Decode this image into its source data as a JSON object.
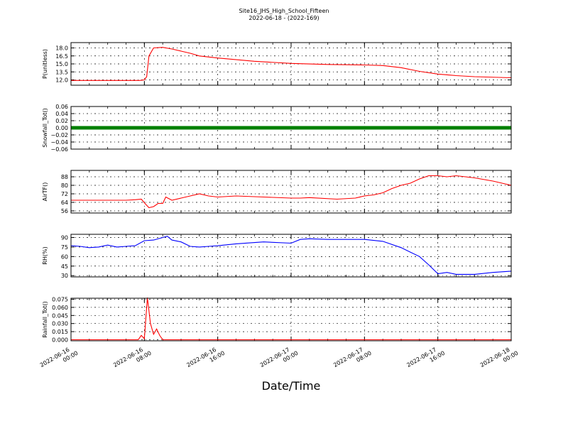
{
  "figure": {
    "title": "Site16_JHS_High_School_Fifteen",
    "subtitle": "2022-06-18 - (2022-169)",
    "xlabel": "Date/Time"
  },
  "chart_data": [
    {
      "type": "line",
      "ylabel": "P(unitless)",
      "ylim": [
        11.0,
        19.0
      ],
      "yticks": [
        12.0,
        13.5,
        15.0,
        16.5,
        18.0
      ],
      "ytick_labels": [
        "12.0",
        "13.5",
        "15.0",
        "16.5",
        "18.0"
      ],
      "color": "#ff0000",
      "x": [
        "2022-06-16 00:00",
        "2022-06-16 04:00",
        "2022-06-16 07:30",
        "2022-06-16 08:00",
        "2022-06-16 08:15",
        "2022-06-16 08:30",
        "2022-06-16 09:00",
        "2022-06-16 10:00",
        "2022-06-16 11:00",
        "2022-06-16 12:00",
        "2022-06-16 13:00",
        "2022-06-16 14:00",
        "2022-06-16 16:00",
        "2022-06-16 20:00",
        "2022-06-17 00:00",
        "2022-06-17 04:00",
        "2022-06-17 08:00",
        "2022-06-17 10:00",
        "2022-06-17 12:00",
        "2022-06-17 14:00",
        "2022-06-17 16:00",
        "2022-06-17 18:00",
        "2022-06-17 20:00",
        "2022-06-18 00:00"
      ],
      "y": [
        11.9,
        11.9,
        11.9,
        12.0,
        12.6,
        16.5,
        18.0,
        18.1,
        17.8,
        17.4,
        17.0,
        16.5,
        16.1,
        15.5,
        15.1,
        14.9,
        14.8,
        14.7,
        14.3,
        13.6,
        13.1,
        12.8,
        12.6,
        12.4
      ],
      "xticks": [
        "2022-06-16 00:00",
        "2022-06-16 08:00",
        "2022-06-16 16:00",
        "2022-06-17 00:00",
        "2022-06-17 08:00",
        "2022-06-17 16:00",
        "2022-06-18 00:00"
      ]
    },
    {
      "type": "line",
      "ylabel": "Snowfall_Tot()",
      "ylim": [
        -0.06,
        0.06
      ],
      "yticks": [
        -0.06,
        -0.04,
        -0.02,
        0.0,
        0.02,
        0.04,
        0.06
      ],
      "ytick_labels": [
        "−0.06",
        "−0.04",
        "−0.02",
        "0.00",
        "0.02",
        "0.04",
        "0.06"
      ],
      "color": "#008000",
      "marker": "square",
      "x": [
        "2022-06-16 00:00",
        "2022-06-18 00:00"
      ],
      "y": [
        0.0,
        0.0
      ],
      "xticks": [
        "2022-06-16 00:00",
        "2022-06-16 08:00",
        "2022-06-16 16:00",
        "2022-06-17 00:00",
        "2022-06-17 08:00",
        "2022-06-17 16:00",
        "2022-06-18 00:00"
      ]
    },
    {
      "type": "line",
      "ylabel": "AirTF()",
      "ylim": [
        54,
        94
      ],
      "yticks": [
        56,
        64,
        72,
        80,
        88
      ],
      "ytick_labels": [
        "56",
        "64",
        "72",
        "80",
        "88"
      ],
      "color": "#ff0000",
      "x": [
        "2022-06-16 00:00",
        "2022-06-16 03:00",
        "2022-06-16 06:00",
        "2022-06-16 07:00",
        "2022-06-16 07:40",
        "2022-06-16 08:10",
        "2022-06-16 08:30",
        "2022-06-16 09:00",
        "2022-06-16 09:30",
        "2022-06-16 10:00",
        "2022-06-16 10:20",
        "2022-06-16 11:00",
        "2022-06-16 12:00",
        "2022-06-16 13:00",
        "2022-06-16 14:00",
        "2022-06-16 15:00",
        "2022-06-16 16:00",
        "2022-06-16 18:00",
        "2022-06-16 21:00",
        "2022-06-17 00:00",
        "2022-06-17 01:00",
        "2022-06-17 02:00",
        "2022-06-17 05:00",
        "2022-06-17 07:00",
        "2022-06-17 08:00",
        "2022-06-17 09:00",
        "2022-06-17 10:00",
        "2022-06-17 11:00",
        "2022-06-17 12:00",
        "2022-06-17 13:00",
        "2022-06-17 14:00",
        "2022-06-17 15:00",
        "2022-06-17 16:00",
        "2022-06-17 17:00",
        "2022-06-17 18:00",
        "2022-06-17 19:00",
        "2022-06-17 20:00",
        "2022-06-17 22:00",
        "2022-06-18 00:00"
      ],
      "y": [
        66,
        66,
        66,
        66.5,
        67,
        62,
        59,
        60,
        63,
        63,
        69,
        66,
        68,
        70,
        72,
        70,
        69,
        70,
        69,
        68,
        68,
        68.5,
        67,
        68,
        70,
        71,
        73,
        77,
        80,
        82,
        86,
        89,
        89,
        88,
        89,
        88,
        87,
        84,
        80
      ],
      "xticks": [
        "2022-06-16 00:00",
        "2022-06-16 08:00",
        "2022-06-16 16:00",
        "2022-06-17 00:00",
        "2022-06-17 08:00",
        "2022-06-17 16:00",
        "2022-06-18 00:00"
      ]
    },
    {
      "type": "line",
      "ylabel": "RH(%)",
      "ylim": [
        28,
        95
      ],
      "yticks": [
        30,
        45,
        60,
        75,
        90
      ],
      "ytick_labels": [
        "30",
        "45",
        "60",
        "75",
        "90"
      ],
      "color": "#0000ff",
      "x": [
        "2022-06-16 00:00",
        "2022-06-16 01:00",
        "2022-06-16 02:00",
        "2022-06-16 03:00",
        "2022-06-16 04:00",
        "2022-06-16 05:00",
        "2022-06-16 06:00",
        "2022-06-16 07:00",
        "2022-06-16 08:00",
        "2022-06-16 09:00",
        "2022-06-16 10:00",
        "2022-06-16 10:30",
        "2022-06-16 11:00",
        "2022-06-16 12:00",
        "2022-06-16 13:00",
        "2022-06-16 14:00",
        "2022-06-16 15:00",
        "2022-06-16 16:00",
        "2022-06-16 18:00",
        "2022-06-16 21:00",
        "2022-06-17 00:00",
        "2022-06-17 01:00",
        "2022-06-17 02:00",
        "2022-06-17 04:00",
        "2022-06-17 06:00",
        "2022-06-17 08:00",
        "2022-06-17 10:00",
        "2022-06-17 12:00",
        "2022-06-17 13:00",
        "2022-06-17 14:00",
        "2022-06-17 15:00",
        "2022-06-17 16:00",
        "2022-06-17 17:00",
        "2022-06-17 18:00",
        "2022-06-17 20:00",
        "2022-06-17 22:00",
        "2022-06-18 00:00"
      ],
      "y": [
        77,
        76,
        74,
        75,
        78,
        75,
        76,
        77,
        85,
        86,
        90,
        92,
        86,
        83,
        76,
        75,
        76,
        77,
        80,
        83,
        81,
        87,
        88,
        87,
        87,
        87,
        84,
        74,
        67,
        60,
        47,
        33,
        35,
        32,
        32,
        35,
        37
      ],
      "xticks": [
        "2022-06-16 00:00",
        "2022-06-16 08:00",
        "2022-06-16 16:00",
        "2022-06-17 00:00",
        "2022-06-17 08:00",
        "2022-06-17 16:00",
        "2022-06-18 00:00"
      ]
    },
    {
      "type": "line",
      "ylabel": "Rainfall_Tot()",
      "ylim": [
        -0.002,
        0.077
      ],
      "yticks": [
        0.0,
        0.015,
        0.03,
        0.045,
        0.06,
        0.075
      ],
      "ytick_labels": [
        "0.000",
        "0.015",
        "0.030",
        "0.045",
        "0.060",
        "0.075"
      ],
      "extra_tick_labels": [
        "0.075",
        "0.060",
        "0.045",
        "0.030",
        "0.015",
        "0.000"
      ],
      "color": "#ff0000",
      "x": [
        "2022-06-16 00:00",
        "2022-06-16 07:20",
        "2022-06-16 07:40",
        "2022-06-16 08:00",
        "2022-06-16 08:20",
        "2022-06-16 08:40",
        "2022-06-16 09:00",
        "2022-06-16 09:20",
        "2022-06-16 09:40",
        "2022-06-16 10:00",
        "2022-06-18 00:00"
      ],
      "y": [
        0.0,
        0.0,
        0.008,
        0.002,
        0.078,
        0.03,
        0.01,
        0.02,
        0.008,
        0.0,
        0.0
      ],
      "xticks": [
        "2022-06-16 00:00",
        "2022-06-16 08:00",
        "2022-06-16 16:00",
        "2022-06-17 00:00",
        "2022-06-17 08:00",
        "2022-06-17 16:00",
        "2022-06-18 00:00"
      ]
    }
  ],
  "xtick_labels": [
    [
      "2022-06-16",
      "00:00"
    ],
    [
      "2022-06-16",
      "08:00"
    ],
    [
      "2022-06-16",
      "16:00"
    ],
    [
      "2022-06-17",
      "00:00"
    ],
    [
      "2022-06-17",
      "08:00"
    ],
    [
      "2022-06-17",
      "16:00"
    ],
    [
      "2022-06-18",
      "00:00"
    ]
  ]
}
